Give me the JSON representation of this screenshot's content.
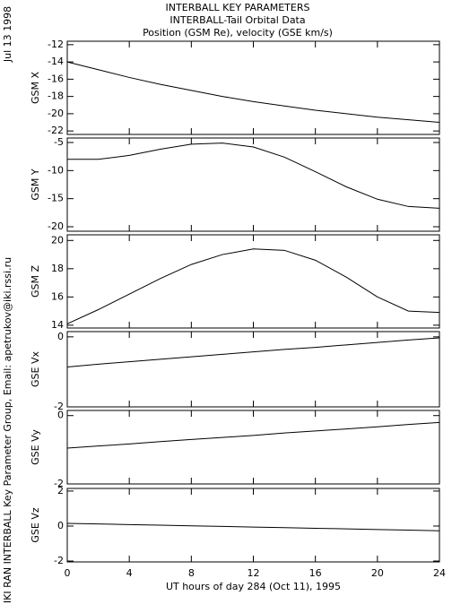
{
  "header": {
    "date": "Jul 13 1998",
    "title": "INTERBALL KEY PARAMETERS",
    "subtitle": "INTERBALL-Tail Orbital Data",
    "subtitle2": "Position (GSM Re), velocity (GSE km/s)",
    "credit": "IKI RAN INTERBALL Key Parameter Group, Email: apetrukov@iki.rssi.ru"
  },
  "chart_data": [
    {
      "type": "line",
      "ylabel": "GSM X",
      "x": [
        0,
        2,
        4,
        6,
        8,
        10,
        12,
        14,
        16,
        18,
        20,
        22,
        24
      ],
      "values": [
        -14,
        -14.9,
        -15.8,
        -16.6,
        -17.3,
        -18.0,
        -18.6,
        -19.1,
        -19.6,
        -20.0,
        -20.4,
        -20.7,
        -21.0
      ],
      "color": "#000000",
      "xlim": [
        0,
        24
      ],
      "xticks": [
        0,
        4,
        8,
        12,
        16,
        20,
        24
      ],
      "ylim": [
        -22.4,
        -11.6
      ],
      "yticks": [
        -12,
        -14,
        -16,
        -18,
        -20,
        -22
      ]
    },
    {
      "type": "line",
      "ylabel": "GSM Y",
      "x": [
        0,
        2,
        4,
        6,
        8,
        10,
        12,
        14,
        16,
        18,
        20,
        22,
        24
      ],
      "values": [
        -8,
        -8,
        -7.3,
        -6.2,
        -5.3,
        -5.1,
        -5.8,
        -7.6,
        -10.2,
        -12.9,
        -15.1,
        -16.4,
        -16.7
      ],
      "color": "#000000",
      "xlim": [
        0,
        24
      ],
      "xticks": [
        0,
        4,
        8,
        12,
        16,
        20,
        24
      ],
      "ylim": [
        -20.8,
        -4.2
      ],
      "yticks": [
        -5,
        -10,
        -15,
        -20
      ]
    },
    {
      "type": "line",
      "ylabel": "GSM Z",
      "x": [
        0,
        2,
        4,
        6,
        8,
        10,
        12,
        14,
        16,
        18,
        20,
        22,
        24
      ],
      "values": [
        14.1,
        15.1,
        16.2,
        17.3,
        18.3,
        19.0,
        19.4,
        19.3,
        18.6,
        17.4,
        16.0,
        15.0,
        14.9
      ],
      "color": "#000000",
      "xlim": [
        0,
        24
      ],
      "xticks": [
        0,
        4,
        8,
        12,
        16,
        20,
        24
      ],
      "ylim": [
        13.8,
        20.4
      ],
      "yticks": [
        14,
        16,
        18,
        20
      ]
    },
    {
      "type": "line",
      "ylabel": "GSE Vx",
      "x": [
        0,
        2,
        4,
        6,
        8,
        10,
        12,
        14,
        16,
        18,
        20,
        22,
        24
      ],
      "values": [
        -0.86,
        -0.78,
        -0.71,
        -0.64,
        -0.57,
        -0.5,
        -0.43,
        -0.36,
        -0.3,
        -0.23,
        -0.16,
        -0.09,
        -0.03
      ],
      "color": "#000000",
      "xlim": [
        0,
        24
      ],
      "xticks": [
        0,
        4,
        8,
        12,
        16,
        20,
        24
      ],
      "ylim": [
        -2,
        0.15
      ],
      "yticks": [
        0,
        -2
      ]
    },
    {
      "type": "line",
      "ylabel": "GSE Vy",
      "x": [
        0,
        2,
        4,
        6,
        8,
        10,
        12,
        14,
        16,
        18,
        20,
        22,
        24
      ],
      "values": [
        -0.95,
        -0.89,
        -0.83,
        -0.76,
        -0.7,
        -0.64,
        -0.58,
        -0.51,
        -0.45,
        -0.39,
        -0.33,
        -0.26,
        -0.2
      ],
      "color": "#000000",
      "xlim": [
        0,
        24
      ],
      "xticks": [
        0,
        4,
        8,
        12,
        16,
        20,
        24
      ],
      "ylim": [
        -2,
        0.15
      ],
      "yticks": [
        0,
        -2
      ]
    },
    {
      "type": "line",
      "ylabel": "GSE Vz",
      "xlabel": "UT hours of day 284 (Oct 11), 1995",
      "x": [
        0,
        2,
        4,
        6,
        8,
        10,
        12,
        14,
        16,
        18,
        20,
        22,
        24
      ],
      "values": [
        0.15,
        0.12,
        0.08,
        0.05,
        0.01,
        -0.02,
        -0.06,
        -0.09,
        -0.13,
        -0.16,
        -0.2,
        -0.23,
        -0.27
      ],
      "color": "#000000",
      "xlim": [
        0,
        24
      ],
      "xticks": [
        0,
        4,
        8,
        12,
        16,
        20,
        24
      ],
      "ylim": [
        -2.05,
        2.15
      ],
      "yticks": [
        2,
        0,
        -2
      ]
    }
  ]
}
